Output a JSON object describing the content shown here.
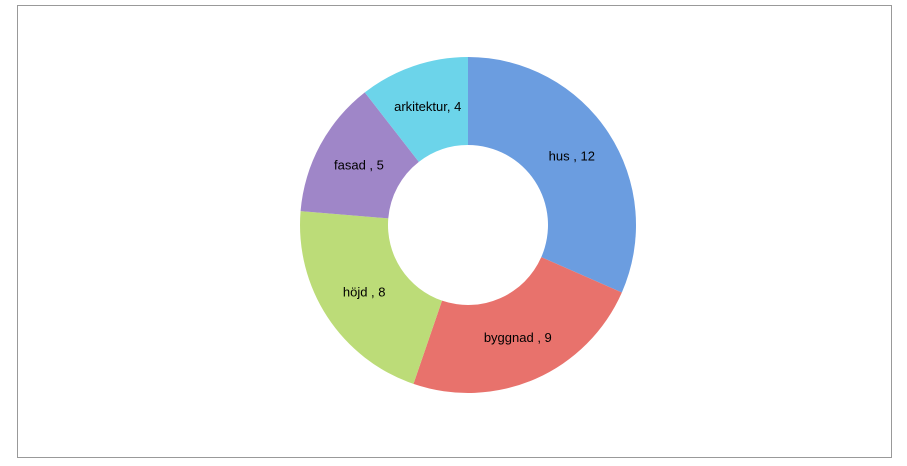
{
  "chart_data": {
    "type": "donut",
    "categories": [
      "hus",
      "byggnad",
      "höjd",
      "fasad",
      "arkitektur"
    ],
    "values": [
      12,
      9,
      8,
      5,
      4
    ],
    "value_labels": [
      "hus , 12",
      "byggnad , 9",
      "höjd , 8",
      "fasad , 5",
      "arkitektur, 4"
    ],
    "colors": [
      "#6b9de0",
      "#e8726c",
      "#bcdc78",
      "#9f86c8",
      "#6cd4ea"
    ]
  }
}
